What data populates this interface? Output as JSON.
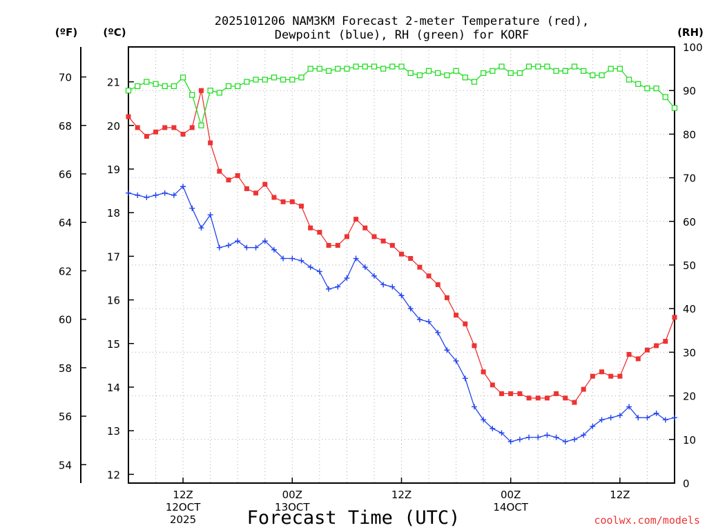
{
  "chart_data": {
    "type": "line",
    "title_line1": "2025101206 NAM3KM Forecast 2-meter Temperature (red),",
    "title_line2": "Dewpoint (blue), RH (green) for KORF",
    "xlabel": "Forecast Time (UTC)",
    "credit": "coolwx.com/models",
    "units": {
      "left_f": "(ºF)",
      "left_c": "(ºC)",
      "right": "(RH)"
    },
    "colors": {
      "temperature": "#ee3333",
      "dewpoint": "#2244ee",
      "rh": "#22dd22",
      "credit": "#ee3333",
      "grid": "#aaaaaa"
    },
    "x_range_hours": [
      6,
      66
    ],
    "ylim_c": [
      11.8,
      21.8
    ],
    "ylim_rh": [
      0,
      100
    ],
    "fahrenheit_ticks": [
      "54",
      "56",
      "58",
      "60",
      "62",
      "64",
      "66",
      "68",
      "70"
    ],
    "celsius_ticks": [
      "12",
      "13",
      "14",
      "15",
      "16",
      "17",
      "18",
      "19",
      "20",
      "21"
    ],
    "rh_ticks": [
      "0",
      "10",
      "20",
      "30",
      "40",
      "50",
      "60",
      "70",
      "80",
      "90",
      "100"
    ],
    "x_ticks": [
      {
        "hour": 12,
        "lines": [
          "12Z",
          "12OCT",
          "2025"
        ]
      },
      {
        "hour": 24,
        "lines": [
          "00Z",
          "13OCT"
        ]
      },
      {
        "hour": 36,
        "lines": [
          "12Z"
        ]
      },
      {
        "hour": 48,
        "lines": [
          "00Z",
          "14OCT"
        ]
      },
      {
        "hour": 60,
        "lines": [
          "12Z"
        ]
      }
    ],
    "series": [
      {
        "name": "Temperature (ºC)",
        "axis": "c",
        "marker": "filled-square",
        "values": [
          20.2,
          19.95,
          19.75,
          19.85,
          19.95,
          19.95,
          19.8,
          19.95,
          20.8,
          19.6,
          18.95,
          18.75,
          18.85,
          18.55,
          18.45,
          18.65,
          18.35,
          18.25,
          18.25,
          18.15,
          17.65,
          17.55,
          17.25,
          17.25,
          17.45,
          17.85,
          17.65,
          17.45,
          17.35,
          17.25,
          17.05,
          16.95,
          16.75,
          16.55,
          16.35,
          16.05,
          15.65,
          15.45,
          14.95,
          14.35,
          14.05,
          13.85,
          13.85,
          13.85,
          13.75,
          13.75,
          13.75,
          13.85,
          13.75,
          13.65,
          13.95,
          14.25,
          14.35,
          14.25,
          14.25,
          14.75,
          14.65,
          14.85,
          14.95,
          15.05,
          15.6
        ]
      },
      {
        "name": "Dewpoint (ºC)",
        "axis": "c",
        "marker": "plus",
        "values": [
          18.45,
          18.4,
          18.35,
          18.4,
          18.45,
          18.4,
          18.6,
          18.1,
          17.65,
          17.95,
          17.2,
          17.25,
          17.35,
          17.2,
          17.2,
          17.35,
          17.15,
          16.95,
          16.95,
          16.9,
          16.75,
          16.65,
          16.25,
          16.3,
          16.5,
          16.95,
          16.75,
          16.55,
          16.35,
          16.3,
          16.1,
          15.8,
          15.55,
          15.5,
          15.25,
          14.85,
          14.6,
          14.2,
          13.55,
          13.25,
          13.05,
          12.95,
          12.75,
          12.8,
          12.85,
          12.85,
          12.9,
          12.85,
          12.75,
          12.8,
          12.9,
          13.1,
          13.25,
          13.3,
          13.35,
          13.55,
          13.3,
          13.3,
          13.4,
          13.25,
          13.3
        ]
      },
      {
        "name": "RH (%)",
        "axis": "rh",
        "marker": "open-square",
        "values": [
          90,
          91,
          92,
          91.5,
          91,
          91,
          93,
          89,
          82,
          90,
          89.5,
          91,
          91,
          92,
          92.5,
          92.5,
          93,
          92.5,
          92.5,
          93,
          95,
          95,
          94.5,
          95,
          95,
          95.5,
          95.5,
          95.5,
          95,
          95.5,
          95.5,
          94,
          93.5,
          94.5,
          94,
          93.5,
          94.5,
          93,
          92,
          94,
          94.5,
          95.5,
          94,
          94,
          95.5,
          95.5,
          95.5,
          94.5,
          94.5,
          95.5,
          94.5,
          93.5,
          93.5,
          95,
          95,
          92.5,
          91.5,
          90.5,
          90.5,
          88.5,
          86
        ]
      }
    ]
  }
}
